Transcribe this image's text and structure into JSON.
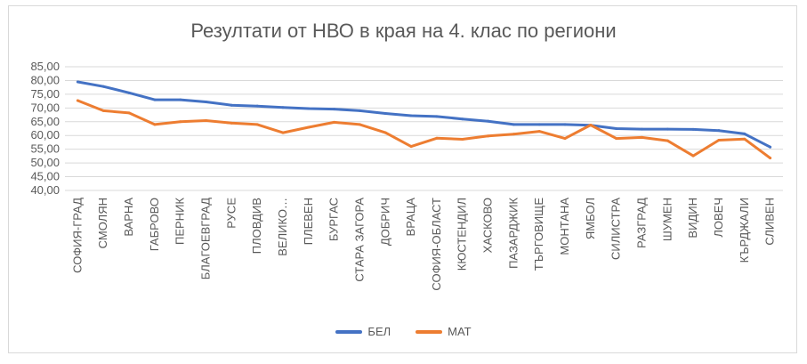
{
  "chart_data": {
    "type": "line",
    "title": "Резултати от НВО в края на 4. клас по региони",
    "xlabel": "",
    "ylabel": "",
    "ylim": [
      40,
      85
    ],
    "y_ticks": [
      "40,00",
      "45,00",
      "50,00",
      "55,00",
      "60,00",
      "65,00",
      "70,00",
      "75,00",
      "80,00",
      "85,00"
    ],
    "grid": true,
    "legend_position": "bottom",
    "categories": [
      "СОФИЯ-ГРАД",
      "СМОЛЯН",
      "ВАРНА",
      "ГАБРОВО",
      "ПЕРНИК",
      "БЛАГОЕВГРАД",
      "РУСЕ",
      "ПЛОВДИВ",
      "ВЕЛИКО…",
      "ПЛЕВЕН",
      "БУРГАС",
      "СТАРА ЗАГОРА",
      "ДОБРИЧ",
      "ВРАЦА",
      "СОФИЯ-ОБЛАСТ",
      "КЮСТЕНДИЛ",
      "ХАСКОВО",
      "ПАЗАРДЖИК",
      "ТЪРГОВИЩЕ",
      "МОНТАНА",
      "ЯМБОЛ",
      "СИЛИСТРА",
      "РАЗГРАД",
      "ШУМЕН",
      "ВИДИН",
      "ЛОВЕЧ",
      "КЪРДЖАЛИ",
      "СЛИВЕН"
    ],
    "series": [
      {
        "name": "БЕЛ",
        "color": "#4472c4",
        "values": [
          79.5,
          77.8,
          75.5,
          73.0,
          73.0,
          72.2,
          71.0,
          70.7,
          70.2,
          69.8,
          69.6,
          69.0,
          68.0,
          67.2,
          66.9,
          66.0,
          65.2,
          64.0,
          64.0,
          64.0,
          63.7,
          62.5,
          62.3,
          62.3,
          62.2,
          61.8,
          60.6,
          55.8
        ]
      },
      {
        "name": "МАТ",
        "color": "#ed7d31",
        "values": [
          72.7,
          69.0,
          68.2,
          64.0,
          65.0,
          65.4,
          64.5,
          64.0,
          61.0,
          63.0,
          64.8,
          64.0,
          61.0,
          56.0,
          59.0,
          58.6,
          59.8,
          60.5,
          61.5,
          58.9,
          63.8,
          58.9,
          59.3,
          58.1,
          52.6,
          58.3,
          58.7,
          51.8
        ]
      }
    ]
  }
}
